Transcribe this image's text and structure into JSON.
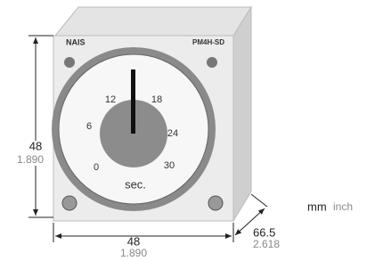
{
  "device": {
    "brand": "NAIS",
    "model": "PM4H-SD",
    "unit": "sec.",
    "dial": [
      "0",
      "6",
      "12",
      "18",
      "24",
      "30"
    ]
  },
  "dimensions": {
    "height": {
      "mm": "48",
      "inch": "1.890"
    },
    "width": {
      "mm": "48",
      "inch": "1.890"
    },
    "depth": {
      "mm": "66.5",
      "inch": "2.618"
    }
  },
  "legend": {
    "mm": "mm",
    "inch": "inch"
  }
}
